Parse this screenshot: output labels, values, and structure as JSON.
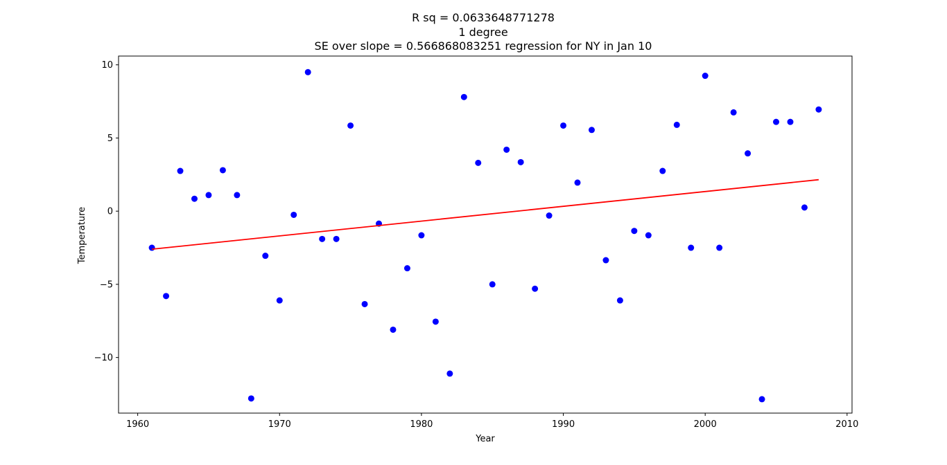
{
  "chart_data": {
    "type": "scatter",
    "title_lines": [
      "R sq = 0.0633648771278",
      "1 degree",
      "SE over slope = 0.566868083251 regression for NY in Jan 10"
    ],
    "xlabel": "Year",
    "ylabel": "Temperature",
    "xlim": [
      1958.65,
      2010.35
    ],
    "ylim": [
      -13.8,
      10.6
    ],
    "x_ticks": [
      1960,
      1970,
      1980,
      1990,
      2000,
      2010
    ],
    "x_tick_labels": [
      "1960",
      "1970",
      "1980",
      "1990",
      "2000",
      "2010"
    ],
    "y_ticks": [
      -10,
      -5,
      0,
      5,
      10
    ],
    "y_tick_labels": [
      "−10",
      "−5",
      "0",
      "5",
      "10"
    ],
    "grid": false,
    "colors": {
      "points": "#0000ff",
      "fit_line": "#ff0000"
    },
    "series": [
      {
        "marker": "circle",
        "x": [
          1961,
          1962,
          1963,
          1964,
          1965,
          1966,
          1967,
          1968,
          1969,
          1970,
          1971,
          1972,
          1973,
          1974,
          1975,
          1976,
          1977,
          1978,
          1979,
          1980,
          1981,
          1982,
          1983,
          1984,
          1985,
          1986,
          1987,
          1988,
          1989,
          1990,
          1991,
          1992,
          1993,
          1994,
          1995,
          1996,
          1997,
          1998,
          1999,
          2000,
          2001,
          2002,
          2003,
          2004,
          2005,
          2006,
          2007,
          2008
        ],
        "y": [
          -2.5,
          -5.8,
          2.75,
          0.85,
          1.1,
          2.8,
          1.1,
          -12.8,
          -3.05,
          -6.1,
          -0.25,
          9.5,
          -1.9,
          -1.9,
          5.85,
          -6.35,
          -0.85,
          -8.1,
          -3.9,
          -1.65,
          -7.55,
          -11.1,
          7.8,
          3.3,
          -5.0,
          4.2,
          3.35,
          -5.3,
          -0.3,
          5.85,
          1.95,
          5.55,
          -3.35,
          -6.1,
          -1.35,
          -1.65,
          2.75,
          5.9,
          -2.5,
          9.25,
          -2.5,
          6.75,
          3.95,
          -12.85,
          6.1,
          6.1,
          0.25,
          6.95
        ]
      }
    ],
    "fit_line": {
      "x": [
        1961,
        2008
      ],
      "y": [
        -2.6,
        2.15
      ]
    }
  }
}
